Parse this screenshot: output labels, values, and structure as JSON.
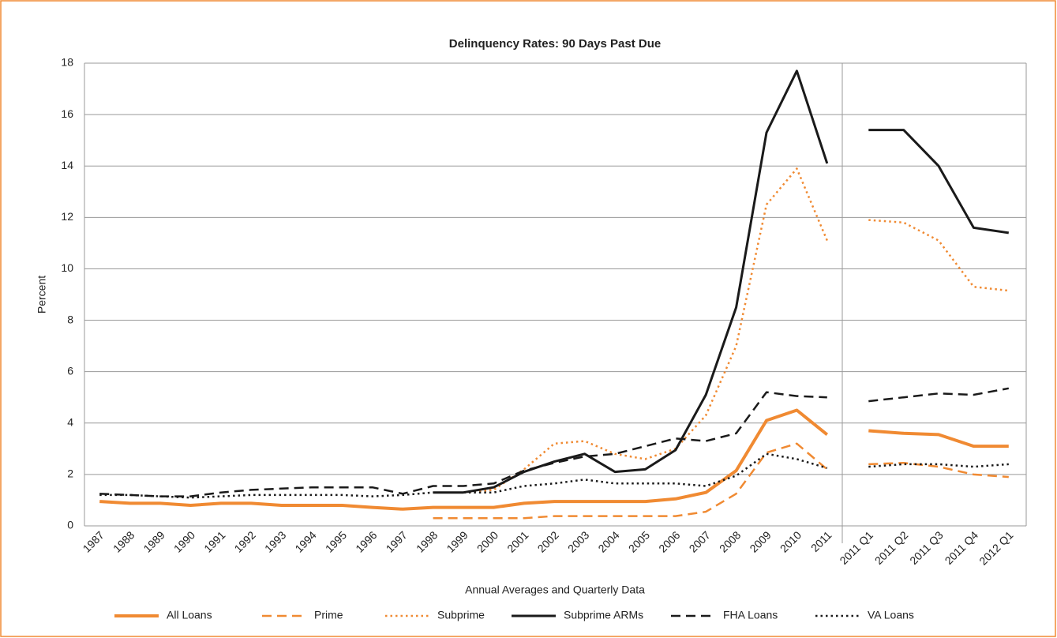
{
  "chart_data": {
    "type": "line",
    "title": "Delinquency Rates: 90 Days Past Due",
    "xlabel": "Annual Averages and Quarterly Data",
    "ylabel": "Percent",
    "categories": [
      "1987",
      "1988",
      "1989",
      "1990",
      "1991",
      "1992",
      "1993",
      "1994",
      "1995",
      "1996",
      "1997",
      "1998",
      "1999",
      "2000",
      "2001",
      "2002",
      "2003",
      "2004",
      "2005",
      "2006",
      "2007",
      "2008",
      "2009",
      "2010",
      "2011",
      null,
      "2011 Q1",
      "2011 Q2",
      "2011 Q3",
      "2011 Q4",
      "2012 Q1"
    ],
    "ylim": [
      0,
      18
    ],
    "yticks": [
      0,
      2,
      4,
      6,
      8,
      10,
      12,
      14,
      16,
      18
    ],
    "grid": true,
    "legend": "bottom",
    "series": [
      {
        "name": "All Loans",
        "color": "#f08a32",
        "style": "solid",
        "width": 4,
        "values": [
          0.95,
          0.88,
          0.88,
          0.8,
          0.88,
          0.88,
          0.8,
          0.8,
          0.8,
          0.72,
          0.65,
          0.72,
          0.72,
          0.72,
          0.88,
          0.95,
          0.95,
          0.95,
          0.95,
          1.05,
          1.3,
          2.15,
          4.1,
          4.5,
          3.55,
          null,
          3.7,
          3.6,
          3.55,
          3.1,
          3.1
        ]
      },
      {
        "name": "Prime",
        "color": "#f08a32",
        "style": "dashed",
        "width": 2.5,
        "values": [
          null,
          null,
          null,
          null,
          null,
          null,
          null,
          null,
          null,
          null,
          null,
          0.3,
          0.3,
          0.3,
          0.3,
          0.38,
          0.38,
          0.38,
          0.38,
          0.38,
          0.55,
          1.25,
          2.85,
          3.2,
          2.2,
          null,
          2.4,
          2.45,
          2.3,
          2.0,
          1.9
        ]
      },
      {
        "name": "Subprime",
        "color": "#f08a32",
        "style": "dotted",
        "width": 2.5,
        "values": [
          null,
          null,
          null,
          null,
          null,
          null,
          null,
          null,
          null,
          null,
          null,
          1.3,
          1.3,
          1.4,
          2.2,
          3.2,
          3.3,
          2.8,
          2.6,
          3.0,
          4.3,
          7.0,
          12.5,
          13.9,
          11.1,
          null,
          11.9,
          11.8,
          11.1,
          9.3,
          9.15
        ]
      },
      {
        "name": "Subprime ARMs",
        "color": "#1a1a1a",
        "style": "solid",
        "width": 3,
        "values": [
          null,
          null,
          null,
          null,
          null,
          null,
          null,
          null,
          null,
          null,
          null,
          1.3,
          1.3,
          1.5,
          2.1,
          2.5,
          2.8,
          2.1,
          2.2,
          2.95,
          5.1,
          8.5,
          15.3,
          17.7,
          14.1,
          null,
          15.4,
          15.4,
          14.0,
          11.6,
          11.4
        ]
      },
      {
        "name": "FHA Loans",
        "color": "#1a1a1a",
        "style": "dashed",
        "width": 2.5,
        "values": [
          1.25,
          1.2,
          1.15,
          1.15,
          1.3,
          1.4,
          1.45,
          1.5,
          1.5,
          1.5,
          1.25,
          1.55,
          1.55,
          1.65,
          2.15,
          2.45,
          2.7,
          2.8,
          3.1,
          3.4,
          3.3,
          3.6,
          5.2,
          5.05,
          5.0,
          null,
          4.85,
          5.0,
          5.15,
          5.1,
          5.35
        ]
      },
      {
        "name": "VA Loans",
        "color": "#1a1a1a",
        "style": "dotted",
        "width": 2.5,
        "values": [
          1.2,
          1.2,
          1.15,
          1.1,
          1.15,
          1.2,
          1.2,
          1.2,
          1.2,
          1.15,
          1.2,
          1.3,
          1.3,
          1.3,
          1.55,
          1.65,
          1.8,
          1.65,
          1.65,
          1.65,
          1.55,
          1.95,
          2.8,
          2.6,
          2.25,
          null,
          2.3,
          2.4,
          2.4,
          2.3,
          2.4
        ]
      }
    ]
  }
}
